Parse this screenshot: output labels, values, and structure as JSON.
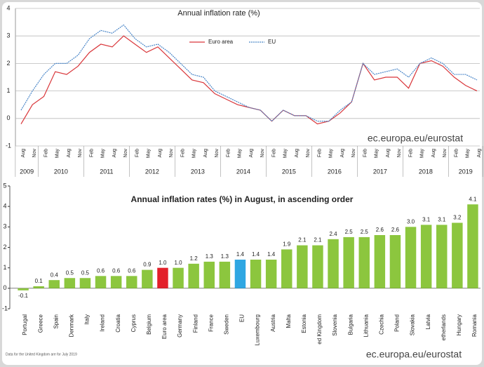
{
  "chart_data": [
    {
      "type": "line",
      "title": "Annual inflation rate (%)",
      "category_groups": [
        {
          "year": "2009",
          "months": [
            "Aug",
            "Nov"
          ]
        },
        {
          "year": "2010",
          "months": [
            "Feb",
            "May",
            "Aug",
            "Nov"
          ]
        },
        {
          "year": "2011",
          "months": [
            "Feb",
            "May",
            "Aug",
            "Nov"
          ]
        },
        {
          "year": "2012",
          "months": [
            "Feb",
            "May",
            "Aug",
            "Nov"
          ]
        },
        {
          "year": "2013",
          "months": [
            "Feb",
            "May",
            "Aug",
            "Nov"
          ]
        },
        {
          "year": "2014",
          "months": [
            "Feb",
            "May",
            "Aug",
            "Nov"
          ]
        },
        {
          "year": "2015",
          "months": [
            "Feb",
            "May",
            "Aug",
            "Nov"
          ]
        },
        {
          "year": "2016",
          "months": [
            "Feb",
            "May",
            "Aug",
            "Nov"
          ]
        },
        {
          "year": "2017",
          "months": [
            "Feb",
            "May",
            "Aug",
            "Nov"
          ]
        },
        {
          "year": "2018",
          "months": [
            "Feb",
            "May",
            "Aug",
            "Nov"
          ]
        },
        {
          "year": "2019",
          "months": [
            "Feb",
            "May",
            "Aug"
          ]
        }
      ],
      "series": [
        {
          "name": "Euro area",
          "color": "#d9363a",
          "dashed": false,
          "values": [
            -0.2,
            0.5,
            0.8,
            1.7,
            1.6,
            1.9,
            2.4,
            2.7,
            2.6,
            3.0,
            2.7,
            2.4,
            2.6,
            2.2,
            1.8,
            1.4,
            1.3,
            0.9,
            0.7,
            0.5,
            0.4,
            0.3,
            -0.1,
            0.3,
            0.1,
            0.1,
            -0.2,
            -0.1,
            0.2,
            0.6,
            2.0,
            1.4,
            1.5,
            1.5,
            1.1,
            2.0,
            2.1,
            1.9,
            1.5,
            1.2,
            1.0
          ]
        },
        {
          "name": "EU",
          "color": "#4a86c8",
          "dashed": true,
          "values": [
            0.3,
            1.0,
            1.6,
            2.0,
            2.0,
            2.3,
            2.9,
            3.2,
            3.1,
            3.4,
            2.9,
            2.6,
            2.7,
            2.4,
            2.0,
            1.6,
            1.5,
            1.0,
            0.8,
            0.6,
            0.4,
            0.3,
            -0.1,
            0.3,
            0.1,
            0.1,
            -0.1,
            -0.1,
            0.3,
            0.6,
            2.0,
            1.6,
            1.7,
            1.8,
            1.5,
            2.0,
            2.2,
            2.0,
            1.6,
            1.6,
            1.4
          ]
        }
      ],
      "ylim": [
        -1,
        4
      ],
      "yticks": [
        -1,
        0,
        1,
        2,
        3,
        4
      ],
      "grid": true,
      "legend": "top",
      "source": "ec.europa.eu/eurostat"
    },
    {
      "type": "bar",
      "title": "Annual inflation rates (%) in August, in ascending order",
      "categories": [
        "Portugal",
        "Greece",
        "Spain",
        "Denmark",
        "Italy",
        "Ireland",
        "Croatia",
        "Cyprus",
        "Belgium",
        "Euro area",
        "Germany",
        "Finland",
        "France",
        "Sweden",
        "EU",
        "Luxembourg",
        "Austria",
        "Malta",
        "Estonia",
        "ed Kingdom",
        "Slovenia",
        "Bulgaria",
        "Lithuania",
        "Czechia",
        "Poland",
        "Slovakia",
        "Latvia",
        "etherlands",
        "Hungary",
        "Romania"
      ],
      "values": [
        -0.1,
        0.1,
        0.4,
        0.5,
        0.5,
        0.6,
        0.6,
        0.6,
        0.9,
        1.0,
        1.0,
        1.2,
        1.3,
        1.3,
        1.4,
        1.4,
        1.4,
        1.9,
        2.1,
        2.1,
        2.4,
        2.5,
        2.5,
        2.6,
        2.6,
        3.0,
        3.1,
        3.1,
        3.2,
        4.1
      ],
      "value_labels": [
        "-0.1",
        "0.1",
        "0.4",
        "0.5",
        "0.5",
        "0.6",
        "0.6",
        "0.6",
        "0.9",
        "1.0",
        "1.0",
        "1.2",
        "1.3",
        "1.3",
        "1.4",
        "1.4",
        "1.4",
        "1.9",
        "2.1",
        "2.1",
        "2.4",
        "2.5",
        "2.5",
        "2.6",
        "2.6",
        "3.0",
        "3.1",
        "3.1",
        "3.2",
        "4.1"
      ],
      "colors": [
        "#8cc63e",
        "#8cc63e",
        "#8cc63e",
        "#8cc63e",
        "#8cc63e",
        "#8cc63e",
        "#8cc63e",
        "#8cc63e",
        "#8cc63e",
        "#e3202a",
        "#8cc63e",
        "#8cc63e",
        "#8cc63e",
        "#8cc63e",
        "#2fa7e2",
        "#8cc63e",
        "#8cc63e",
        "#8cc63e",
        "#8cc63e",
        "#8cc63e",
        "#8cc63e",
        "#8cc63e",
        "#8cc63e",
        "#8cc63e",
        "#8cc63e",
        "#8cc63e",
        "#8cc63e",
        "#8cc63e",
        "#8cc63e",
        "#8cc63e"
      ],
      "ylim": [
        -1,
        5
      ],
      "yticks": [
        -1,
        0,
        1,
        2,
        3,
        4,
        5
      ],
      "note": "Data for the United Kingdom are for July 2019",
      "source": "ec.europa.eu/eurostat"
    }
  ]
}
